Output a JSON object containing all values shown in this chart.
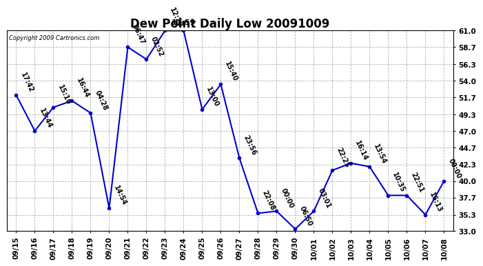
{
  "title": "Dew Point Daily Low 20091009",
  "copyright": "Copyright 2009 Cartronics.com",
  "line_color": "#0000cc",
  "bg_color": "#ffffff",
  "grid_color": "#aaaaaa",
  "marker_color": "#0000cc",
  "x_labels": [
    "09/15",
    "09/16",
    "09/17",
    "09/18",
    "09/19",
    "09/20",
    "09/21",
    "09/22",
    "09/23",
    "09/24",
    "09/25",
    "09/26",
    "09/27",
    "09/28",
    "09/29",
    "09/30",
    "10/01",
    "10/02",
    "10/03",
    "10/04",
    "10/05",
    "10/06",
    "10/07",
    "10/08"
  ],
  "y_values": [
    52.0,
    47.0,
    50.3,
    51.2,
    49.5,
    36.2,
    58.7,
    57.0,
    61.0,
    61.0,
    50.0,
    53.5,
    43.2,
    35.5,
    35.8,
    33.3,
    35.8,
    41.5,
    42.5,
    42.0,
    38.0,
    38.0,
    35.3,
    40.0
  ],
  "point_labels": [
    "17:42",
    "13:44",
    "15:10",
    "16:44",
    "04:28",
    "14:54",
    "06:47",
    "02:52",
    "12:20",
    "11:59",
    "13:00",
    "15:40",
    "23:56",
    "22:08",
    "00:00",
    "06:50",
    "03:01",
    "22:25",
    "16:14",
    "13:54",
    "10:35",
    "22:51",
    "16:13",
    "00:00"
  ],
  "peak_label": "11:59",
  "peak_index": 9,
  "ylim": [
    33.0,
    61.0
  ],
  "yticks": [
    33.0,
    35.3,
    37.7,
    40.0,
    42.3,
    44.7,
    47.0,
    49.3,
    51.7,
    54.0,
    56.3,
    58.7,
    61.0
  ],
  "title_fontsize": 12,
  "label_fontsize": 7,
  "tick_fontsize": 7.5
}
